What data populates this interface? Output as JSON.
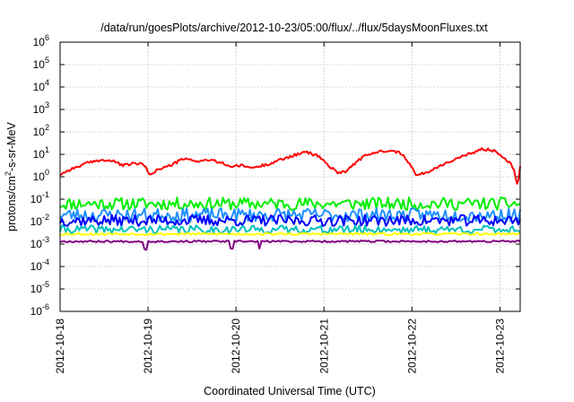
{
  "chart_data": {
    "type": "line",
    "title": "/data/run/goesPlots/archive/2012-10-23/05:00/flux/../flux/5daysMoonFluxes.txt",
    "xlabel": "Coordinated Universal Time (UTC)",
    "ylabel": {
      "prefix": "protons/cm",
      "sup": "2",
      "suffix": "-s-sr-MeV"
    },
    "yscale": "log",
    "ylim_exp": [
      -6,
      6
    ],
    "yticks": [
      {
        "base": "10",
        "exp": "-6"
      },
      {
        "base": "10",
        "exp": "-5"
      },
      {
        "base": "10",
        "exp": "-4"
      },
      {
        "base": "10",
        "exp": "-3"
      },
      {
        "base": "10",
        "exp": "-2"
      },
      {
        "base": "10",
        "exp": "-1"
      },
      {
        "base": "10",
        "exp": "0"
      },
      {
        "base": "10",
        "exp": "1"
      },
      {
        "base": "10",
        "exp": "2"
      },
      {
        "base": "10",
        "exp": "3"
      },
      {
        "base": "10",
        "exp": "4"
      },
      {
        "base": "10",
        "exp": "5"
      },
      {
        "base": "10",
        "exp": "6"
      }
    ],
    "x_range_days": [
      0,
      5.23
    ],
    "xticks": [
      {
        "label": "2012-10-18",
        "day": 0
      },
      {
        "label": "2012-10-19",
        "day": 1
      },
      {
        "label": "2012-10-20",
        "day": 2
      },
      {
        "label": "2012-10-21",
        "day": 3
      },
      {
        "label": "2012-10-22",
        "day": 4
      },
      {
        "label": "2012-10-23",
        "day": 5
      }
    ],
    "grid": true,
    "series": [
      {
        "color": "#ff0000",
        "x": [
          0,
          0.1,
          0.2,
          0.3,
          0.45,
          0.6,
          0.72,
          0.85,
          0.95,
          1.02,
          1.1,
          1.25,
          1.4,
          1.55,
          1.7,
          1.85,
          1.95,
          2.05,
          2.2,
          2.35,
          2.5,
          2.65,
          2.8,
          2.95,
          3.05,
          3.15,
          3.25,
          3.35,
          3.45,
          3.6,
          3.75,
          3.9,
          3.98,
          4.05,
          4.2,
          4.35,
          4.5,
          4.65,
          4.8,
          4.95,
          5.05,
          5.12,
          5.16,
          5.2,
          5.23
        ],
        "y_exp": [
          0.1,
          0.3,
          0.45,
          0.6,
          0.75,
          0.7,
          0.5,
          0.6,
          0.55,
          0.1,
          0.3,
          0.5,
          0.8,
          0.7,
          0.75,
          0.6,
          0.45,
          0.5,
          0.4,
          0.55,
          0.75,
          0.95,
          1.1,
          0.9,
          0.5,
          0.2,
          0.25,
          0.6,
          0.9,
          1.1,
          1.2,
          1.0,
          0.55,
          0.05,
          0.25,
          0.55,
          0.8,
          1.0,
          1.25,
          1.15,
          0.85,
          0.6,
          0.3,
          -0.4,
          0.5
        ]
      },
      {
        "color": "#00ee00",
        "x": [
          0,
          5.23
        ],
        "y_exp": [
          -1.2,
          -1.2
        ],
        "noise": 0.28,
        "seed": 11
      },
      {
        "color": "#1e90ff",
        "x": [
          0,
          5.23
        ],
        "y_exp": [
          -1.7,
          -1.7
        ],
        "noise": 0.3,
        "seed": 23
      },
      {
        "color": "#0000ff",
        "x": [
          0,
          5.23
        ],
        "y_exp": [
          -1.95,
          -1.95
        ],
        "noise": 0.25,
        "seed": 37
      },
      {
        "color": "#00bfbf",
        "x": [
          0,
          5.23
        ],
        "y_exp": [
          -2.35,
          -2.35
        ],
        "noise": 0.18,
        "seed": 41
      },
      {
        "color": "#ffff00",
        "x": [
          0,
          5.23
        ],
        "y_exp": [
          -2.55,
          -2.55
        ],
        "noise": 0.05,
        "seed": 53
      },
      {
        "color": "#800080",
        "x": [
          0,
          5.23
        ],
        "y_exp": [
          -2.88,
          -2.88
        ],
        "noise": 0.04,
        "seed": 67,
        "dips": [
          0.97,
          1.95,
          2.27
        ]
      }
    ]
  }
}
